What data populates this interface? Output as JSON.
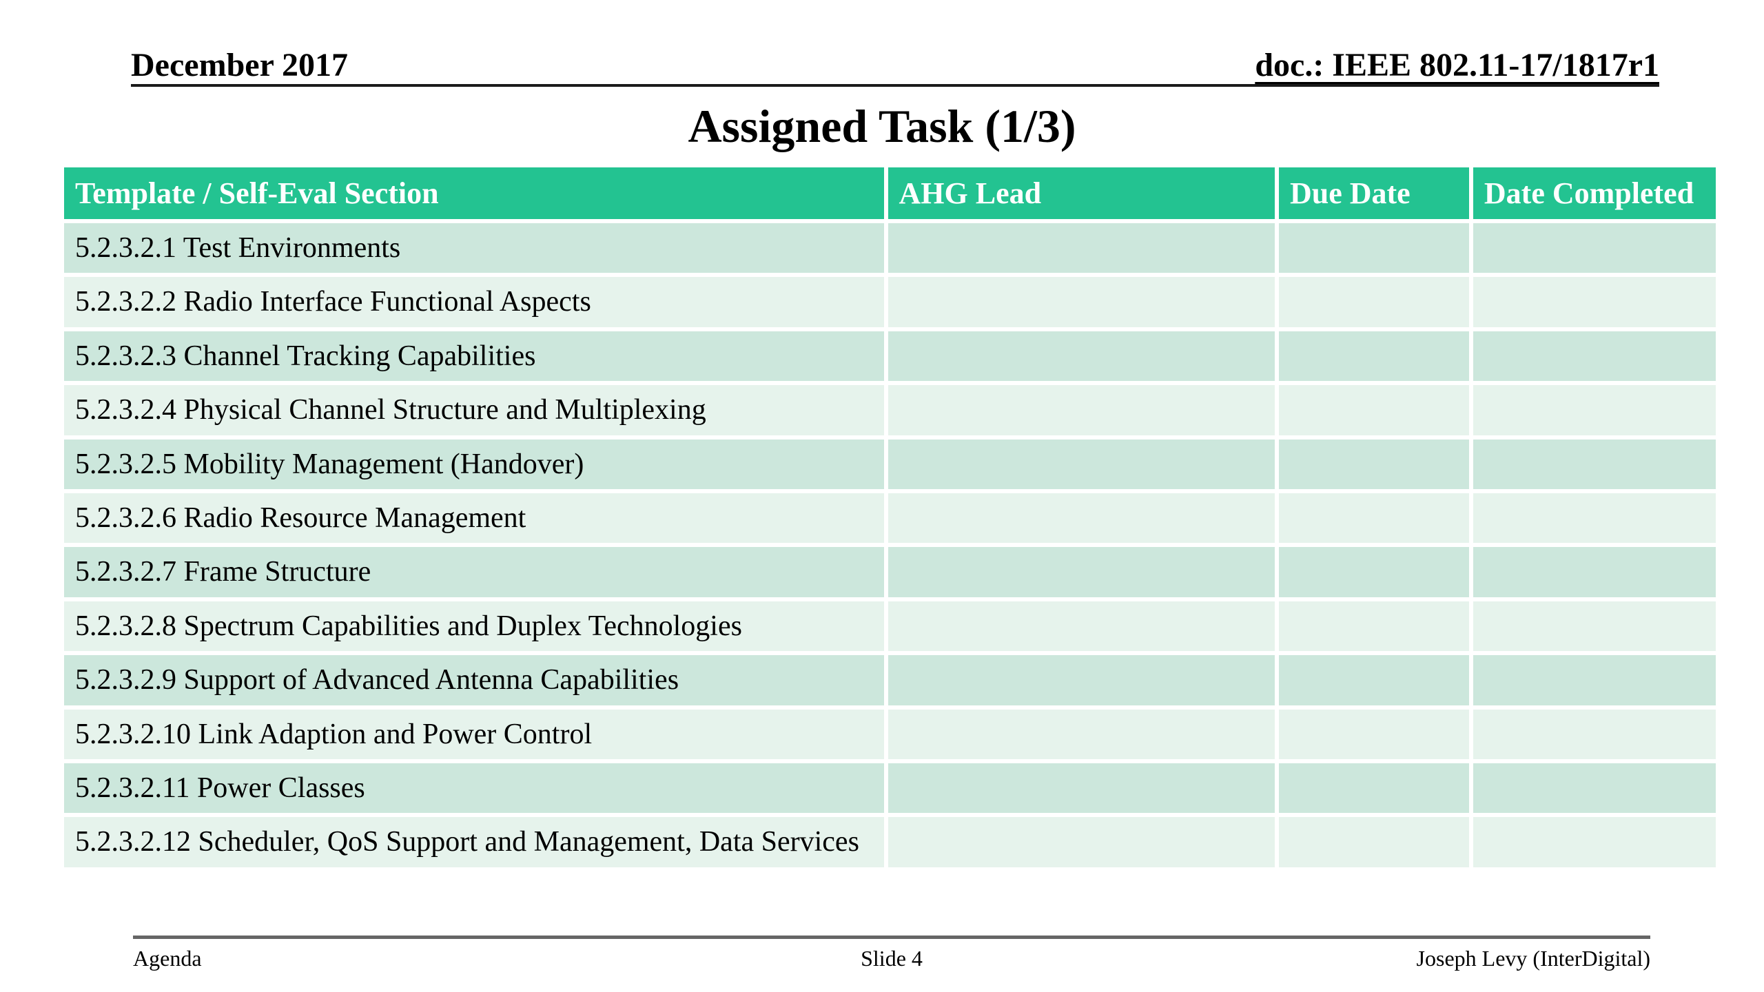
{
  "header": {
    "date": "December 2017",
    "doc_id": "doc.: IEEE 802.11-17/1817r1"
  },
  "title": "Assigned Task (1/3)",
  "table": {
    "columns": [
      "Template / Self-Eval Section",
      "AHG Lead",
      "Due Date",
      "Date Completed"
    ],
    "rows": [
      {
        "section": "5.2.3.2.1 Test Environments",
        "ahg_lead": "",
        "due_date": "",
        "date_completed": ""
      },
      {
        "section": "5.2.3.2.2 Radio Interface Functional Aspects",
        "ahg_lead": "",
        "due_date": "",
        "date_completed": ""
      },
      {
        "section": "5.2.3.2.3 Channel Tracking Capabilities",
        "ahg_lead": "",
        "due_date": "",
        "date_completed": ""
      },
      {
        "section": "5.2.3.2.4 Physical Channel Structure and Multiplexing",
        "ahg_lead": "",
        "due_date": "",
        "date_completed": ""
      },
      {
        "section": "5.2.3.2.5 Mobility Management (Handover)",
        "ahg_lead": "",
        "due_date": "",
        "date_completed": ""
      },
      {
        "section": "5.2.3.2.6 Radio Resource Management",
        "ahg_lead": "",
        "due_date": "",
        "date_completed": ""
      },
      {
        "section": "5.2.3.2.7 Frame Structure",
        "ahg_lead": "",
        "due_date": "",
        "date_completed": ""
      },
      {
        "section": "5.2.3.2.8 Spectrum Capabilities and Duplex Technologies",
        "ahg_lead": "",
        "due_date": "",
        "date_completed": ""
      },
      {
        "section": "5.2.3.2.9 Support of Advanced Antenna Capabilities",
        "ahg_lead": "",
        "due_date": "",
        "date_completed": ""
      },
      {
        "section": "5.2.3.2.10 Link Adaption and Power Control",
        "ahg_lead": "",
        "due_date": "",
        "date_completed": ""
      },
      {
        "section": "5.2.3.2.11 Power Classes",
        "ahg_lead": "",
        "due_date": "",
        "date_completed": ""
      },
      {
        "section": "5.2.3.2.12 Scheduler, QoS Support and Management, Data Services",
        "ahg_lead": "",
        "due_date": "",
        "date_completed": ""
      }
    ]
  },
  "footer": {
    "left": "Agenda",
    "center": "Slide 4",
    "right": "Joseph Levy (InterDigital)"
  },
  "colors": {
    "header_bg": "#23c391",
    "row_odd": "#cce7dc",
    "row_even": "#e6f3ec",
    "header_text": "#ffffff",
    "body_text": "#000000"
  }
}
